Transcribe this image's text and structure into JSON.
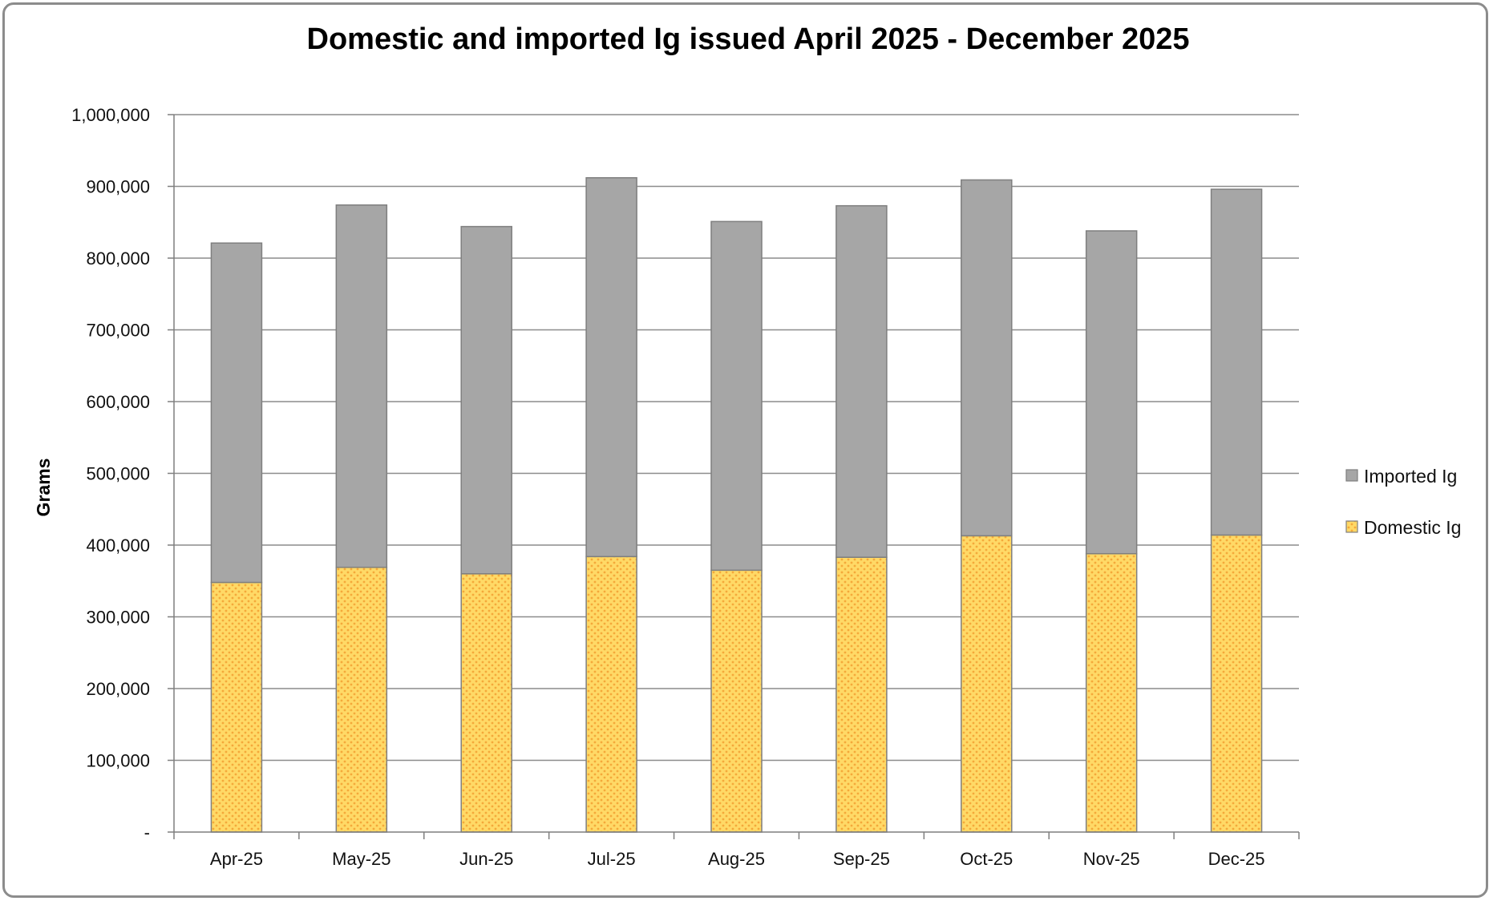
{
  "chart_data": {
    "type": "bar",
    "stacked": true,
    "title": "Domestic and imported Ig issued April 2025 - December 2025",
    "xlabel": "",
    "ylabel": "Grams",
    "ylim": [
      0,
      1000000
    ],
    "yticks": [
      0,
      100000,
      200000,
      300000,
      400000,
      500000,
      600000,
      700000,
      800000,
      900000,
      1000000
    ],
    "ytick_labels": [
      "-",
      "100,000",
      "200,000",
      "300,000",
      "400,000",
      "500,000",
      "600,000",
      "700,000",
      "800,000",
      "900,000",
      "1,000,000"
    ],
    "categories": [
      "Apr-25",
      "May-25",
      "Jun-25",
      "Jul-25",
      "Aug-25",
      "Sep-25",
      "Oct-25",
      "Nov-25",
      "Dec-25"
    ],
    "series": [
      {
        "name": "Domestic Ig",
        "color": "#ffd966",
        "pattern_color": "#f4a93a",
        "values": [
          348000,
          369000,
          360000,
          384000,
          365000,
          383000,
          413000,
          388000,
          414000
        ]
      },
      {
        "name": "Imported Ig",
        "color": "#a6a6a6",
        "values": [
          473000,
          505000,
          484000,
          528000,
          486000,
          490000,
          496000,
          450000,
          482000
        ]
      }
    ],
    "grid": true,
    "legend": "right",
    "legend_order": [
      "Imported Ig",
      "Domestic Ig"
    ]
  }
}
